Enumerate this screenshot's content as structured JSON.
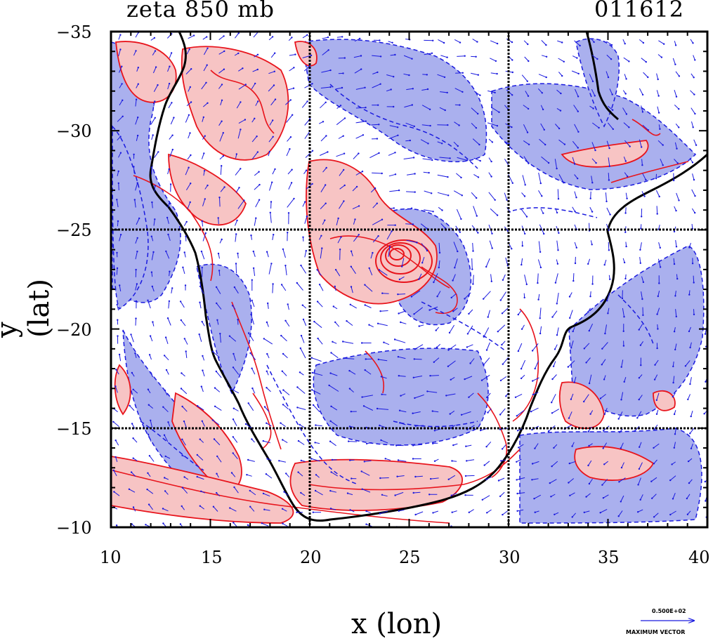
{
  "header": {
    "left_title": "zeta 850 mb",
    "right_title": "011612"
  },
  "axes": {
    "x_title": "x (lon)",
    "y_title": "y (lat)",
    "x_ticks": [
      "10",
      "15",
      "20",
      "25",
      "30",
      "35",
      "40"
    ],
    "y_ticks": [
      "−35",
      "−30",
      "−25",
      "−20",
      "−15",
      "−10"
    ]
  },
  "legend_vector": {
    "value": "0.500E+02",
    "label": "MAXIMUM VECTOR"
  },
  "map": {
    "x_range": [
      10,
      40
    ],
    "y_range": [
      -35,
      -10
    ],
    "grid_lines_x": [
      20,
      30
    ],
    "grid_lines_y": [
      -25,
      -15
    ],
    "colors": {
      "positive_fill": "#f7c4c4",
      "positive_line": "#e8141c",
      "negative_fill": "#aab0ee",
      "negative_line": "#1a1adf",
      "coast": "#000000"
    },
    "features": [
      "positive-vorticity-contours",
      "negative-vorticity-contours",
      "coastline",
      "wind-vectors",
      "cyclone-center"
    ]
  }
}
